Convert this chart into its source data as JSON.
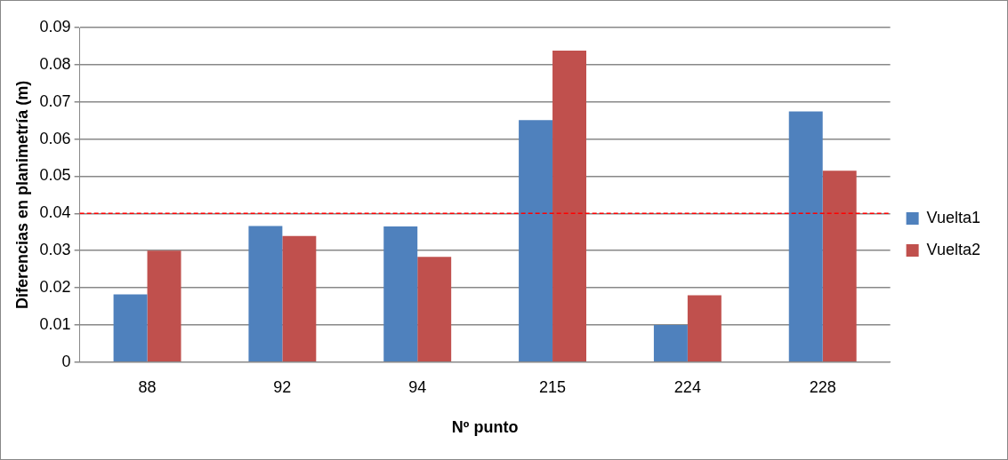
{
  "chart_data": {
    "type": "bar",
    "xlabel": "Nº punto",
    "ylabel": "Diferencias en planimetría (m)",
    "categories": [
      "88",
      "92",
      "94",
      "215",
      "224",
      "228"
    ],
    "series": [
      {
        "name": "Vuelta1",
        "color": "#4f81bd",
        "values": [
          0.0182,
          0.0366,
          0.0365,
          0.0651,
          0.01,
          0.0674
        ]
      },
      {
        "name": "Vuelta2",
        "color": "#c0504d",
        "values": [
          0.03,
          0.0339,
          0.0283,
          0.0838,
          0.018,
          0.0515
        ]
      }
    ],
    "ylim": [
      0,
      0.09
    ],
    "yticks": [
      0,
      0.01,
      0.02,
      0.03,
      0.04,
      0.05,
      0.06,
      0.07,
      0.08,
      0.09
    ],
    "grid": "y",
    "legend": "right",
    "ref_lines": [
      {
        "axis": "y",
        "value": 0.04,
        "color": "#ff0000",
        "line_style": "dashed"
      }
    ]
  }
}
